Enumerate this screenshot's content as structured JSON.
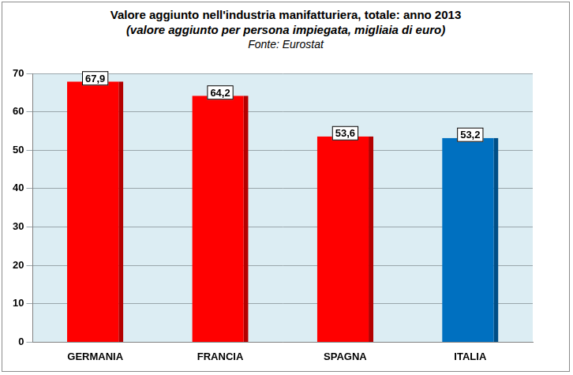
{
  "chart_data": {
    "type": "bar",
    "title": "Valore aggiunto nell'industria manifatturiera, totale: anno 2013",
    "subtitle": "(valore aggiunto per persona impiegata, migliaia di euro)",
    "annotations": [
      "Fonte: Eurostat"
    ],
    "categories": [
      "GERMANIA",
      "FRANCIA",
      "SPAGNA",
      "ITALIA"
    ],
    "values": [
      67.9,
      64.2,
      53.6,
      53.2
    ],
    "value_labels": [
      "67,9",
      "64,2",
      "53,6",
      "53,2"
    ],
    "colors": [
      "#ff0000",
      "#ff0000",
      "#ff0000",
      "#0070c0"
    ],
    "ylim": [
      0,
      70
    ],
    "yticks": [
      0,
      10,
      20,
      30,
      40,
      50,
      60,
      70
    ],
    "grid": true,
    "data_labels": true
  }
}
